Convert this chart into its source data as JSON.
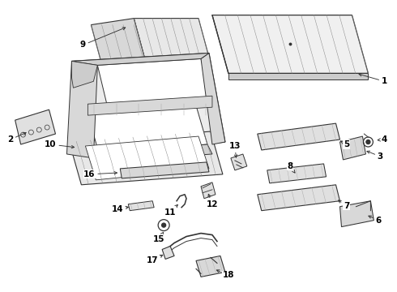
{
  "bg_color": "#ffffff",
  "line_color": "#333333",
  "text_color": "#000000",
  "fig_width": 4.9,
  "fig_height": 3.6,
  "dpi": 100
}
